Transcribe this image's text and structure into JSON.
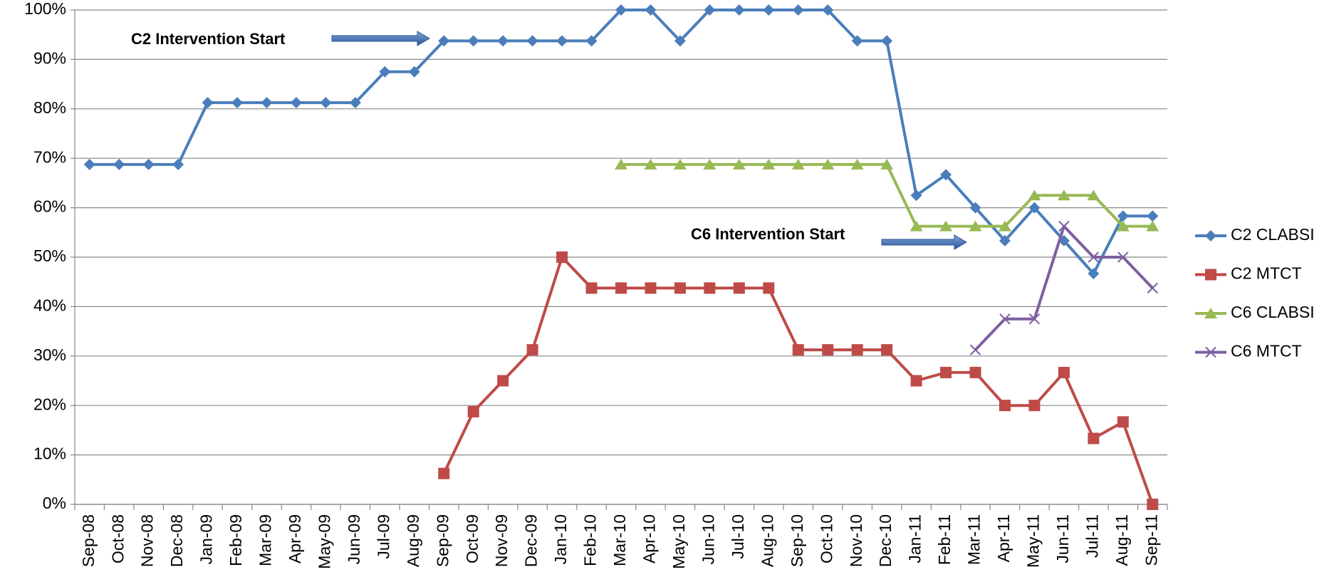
{
  "chart_data": {
    "type": "line",
    "categories": [
      "Sep-08",
      "Oct-08",
      "Nov-08",
      "Dec-08",
      "Jan-09",
      "Feb-09",
      "Mar-09",
      "Apr-09",
      "May-09",
      "Jun-09",
      "Jul-09",
      "Aug-09",
      "Sep-09",
      "Oct-09",
      "Nov-09",
      "Dec-09",
      "Jan-10",
      "Feb-10",
      "Mar-10",
      "Apr-10",
      "May-10",
      "Jun-10",
      "Jul-10",
      "Aug-10",
      "Sep-10",
      "Oct-10",
      "Nov-10",
      "Dec-10",
      "Jan-11",
      "Feb-11",
      "Mar-11",
      "Apr-11",
      "May-11",
      "Jun-11",
      "Jul-11",
      "Aug-11",
      "Sep-11"
    ],
    "series": [
      {
        "name": "C2 CLABSI",
        "color": "#4a7ebb",
        "marker": "diamond",
        "values": [
          68.75,
          68.75,
          68.75,
          68.75,
          81.25,
          81.25,
          81.25,
          81.25,
          81.25,
          81.25,
          87.5,
          87.5,
          93.75,
          93.75,
          93.75,
          93.75,
          93.75,
          93.75,
          100,
          100,
          93.75,
          100,
          100,
          100,
          100,
          100,
          93.75,
          93.75,
          62.5,
          66.67,
          60,
          53.33,
          60,
          53.33,
          46.67,
          58.33,
          58.33
        ]
      },
      {
        "name": "C2 MTCT",
        "color": "#be4b48",
        "marker": "square",
        "values": [
          null,
          null,
          null,
          null,
          null,
          null,
          null,
          null,
          null,
          null,
          null,
          null,
          6.25,
          18.75,
          25,
          31.25,
          50,
          43.75,
          43.75,
          43.75,
          43.75,
          43.75,
          43.75,
          43.75,
          31.25,
          31.25,
          31.25,
          31.25,
          25,
          26.67,
          26.67,
          20,
          20,
          26.67,
          13.33,
          16.67,
          0
        ]
      },
      {
        "name": "C6 CLABSI",
        "color": "#98b954",
        "marker": "triangle",
        "values": [
          null,
          null,
          null,
          null,
          null,
          null,
          null,
          null,
          null,
          null,
          null,
          null,
          null,
          null,
          null,
          null,
          null,
          null,
          68.75,
          68.75,
          68.75,
          68.75,
          68.75,
          68.75,
          68.75,
          68.75,
          68.75,
          68.75,
          56.25,
          56.25,
          56.25,
          56.25,
          62.5,
          62.5,
          62.5,
          56.25,
          56.25
        ]
      },
      {
        "name": "C6 MTCT",
        "color": "#7d60a0",
        "marker": "x",
        "values": [
          null,
          null,
          null,
          null,
          null,
          null,
          null,
          null,
          null,
          null,
          null,
          null,
          null,
          null,
          null,
          null,
          null,
          null,
          null,
          null,
          null,
          null,
          null,
          null,
          null,
          null,
          null,
          null,
          null,
          null,
          31.25,
          37.5,
          37.5,
          56.25,
          50,
          50,
          43.75
        ]
      }
    ],
    "ylim": [
      0,
      100
    ],
    "yticks": [
      {
        "value": 0,
        "label": "0%"
      },
      {
        "value": 10,
        "label": "10%"
      },
      {
        "value": 20,
        "label": "20%"
      },
      {
        "value": 30,
        "label": "30%"
      },
      {
        "value": 40,
        "label": "40%"
      },
      {
        "value": 50,
        "label": "50%"
      },
      {
        "value": 60,
        "label": "60%"
      },
      {
        "value": 70,
        "label": "70%"
      },
      {
        "value": 80,
        "label": "80%"
      },
      {
        "value": 90,
        "label": "90%"
      },
      {
        "value": 100,
        "label": "100%"
      }
    ],
    "grid": true,
    "legend": "right",
    "annotations": [
      "C2 Intervention Start",
      "C6 Intervention Start"
    ]
  }
}
